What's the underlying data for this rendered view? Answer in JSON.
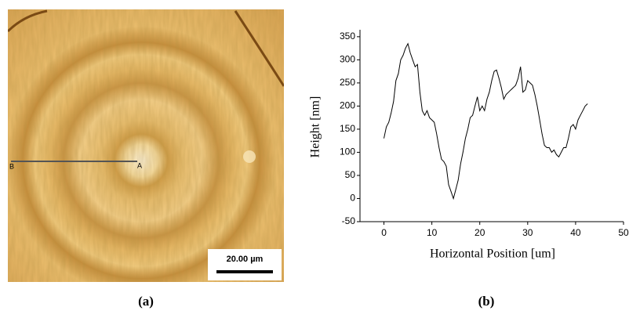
{
  "figure": {
    "label_b": "B",
    "label_a": "A",
    "scale_bar": "20.00 µm",
    "caption_a": "(a)",
    "caption_b": "(b)"
  },
  "chart_data": {
    "type": "line",
    "xlabel": "Horizontal Position [um]",
    "ylabel": "Height [nm]",
    "x": [
      0,
      0.5,
      1,
      1.5,
      2,
      2.5,
      3,
      3.5,
      4,
      4.5,
      5,
      5.5,
      6,
      6.5,
      7,
      7.5,
      8,
      8.5,
      9,
      9.5,
      10,
      10.5,
      11,
      11.5,
      12,
      12.5,
      13,
      13.5,
      14,
      14.5,
      15,
      15.5,
      16,
      16.5,
      17,
      17.5,
      18,
      18.5,
      19,
      19.5,
      20,
      20.5,
      21,
      21.5,
      22,
      22.5,
      23,
      23.5,
      24,
      24.5,
      25,
      25.5,
      26,
      26.5,
      27,
      27.5,
      28,
      28.5,
      29,
      29.5,
      30,
      30.5,
      31,
      31.5,
      32,
      32.5,
      33,
      33.5,
      34,
      34.5,
      35,
      35.5,
      36,
      36.5,
      37,
      37.5,
      38,
      38.5,
      39,
      39.5,
      40,
      40.5,
      41,
      41.5,
      42,
      42.5
    ],
    "values": [
      130,
      155,
      165,
      185,
      210,
      255,
      270,
      300,
      310,
      325,
      335,
      315,
      300,
      285,
      290,
      230,
      190,
      180,
      190,
      175,
      170,
      165,
      140,
      110,
      85,
      80,
      70,
      30,
      15,
      0,
      20,
      40,
      75,
      100,
      130,
      150,
      175,
      180,
      200,
      220,
      190,
      200,
      190,
      215,
      230,
      255,
      275,
      278,
      260,
      240,
      215,
      225,
      230,
      235,
      240,
      245,
      260,
      285,
      230,
      235,
      255,
      250,
      245,
      225,
      200,
      170,
      140,
      115,
      110,
      110,
      100,
      105,
      95,
      90,
      100,
      110,
      110,
      130,
      155,
      160,
      150,
      170,
      180,
      190,
      200,
      205
    ],
    "color": "#000000",
    "xlim": [
      -5,
      50
    ],
    "ylim": [
      -50,
      365
    ],
    "xticks": [
      0,
      10,
      20,
      30,
      40,
      50
    ],
    "yticks": [
      -50,
      0,
      50,
      100,
      150,
      200,
      250,
      300,
      350
    ]
  }
}
